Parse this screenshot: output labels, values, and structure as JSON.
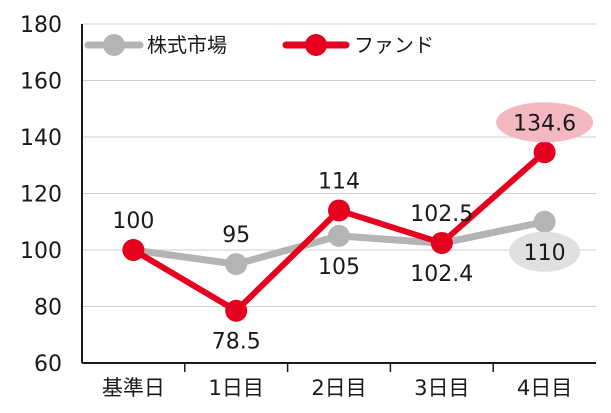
{
  "chart_data": {
    "type": "line",
    "categories": [
      "基準日",
      "1日目",
      "2日目",
      "3日目",
      "4日目"
    ],
    "ylim": [
      60,
      180
    ],
    "yticks": [
      60,
      80,
      100,
      120,
      140,
      160,
      180
    ],
    "grid": true,
    "legend_position": "top-left",
    "series": [
      {
        "name": "株式市場",
        "color": "#b4b4b4",
        "values": [
          100,
          95,
          105,
          102.4,
          110
        ],
        "labels": [
          "",
          "95",
          "105",
          "102.4",
          "110"
        ],
        "label_side": [
          "none",
          "above",
          "below",
          "below",
          "below"
        ],
        "label_badge": [
          "",
          "",
          "",
          "",
          "#e0e0e0"
        ]
      },
      {
        "name": "ファンド",
        "color": "#e60020",
        "values": [
          100,
          78.5,
          114,
          102.5,
          134.6
        ],
        "labels": [
          "100",
          "78.5",
          "114",
          "102.5",
          "134.6"
        ],
        "label_side": [
          "above",
          "below",
          "above",
          "above",
          "above"
        ],
        "label_badge": [
          "",
          "",
          "",
          "",
          "#f4b8c0"
        ]
      }
    ]
  }
}
